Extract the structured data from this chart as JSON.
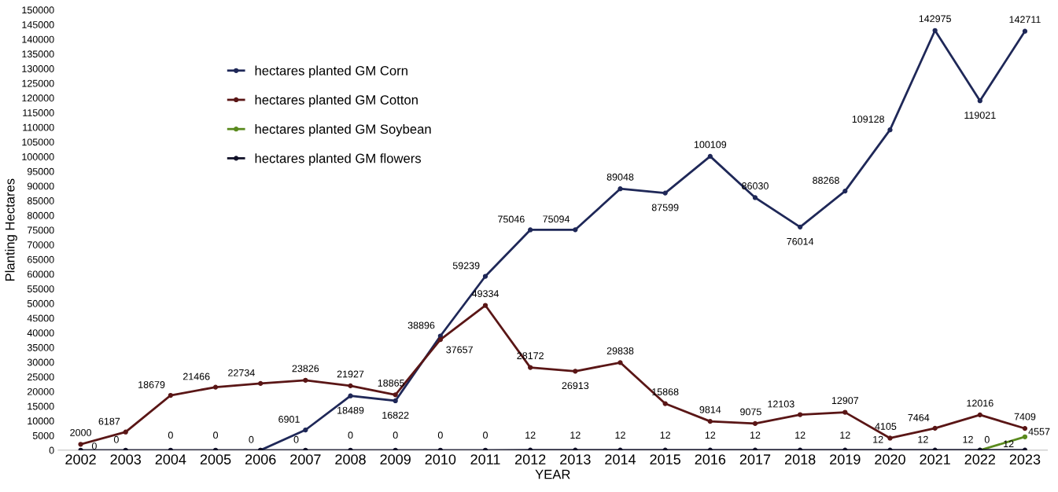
{
  "chart_data": {
    "type": "line",
    "xlabel": "YEAR",
    "ylabel": "Planting Hectares",
    "categories": [
      "2002",
      "2003",
      "2004",
      "2005",
      "2006",
      "2007",
      "2008",
      "2009",
      "2010",
      "2011",
      "2012",
      "2013",
      "2014",
      "2015",
      "2016",
      "2017",
      "2018",
      "2019",
      "2020",
      "2021",
      "2022",
      "2023"
    ],
    "series": [
      {
        "name": "hectares planted GM Corn",
        "color": "#1f2858",
        "values": [
          null,
          null,
          null,
          null,
          0,
          6901,
          18489,
          16822,
          38896,
          59239,
          75046,
          75094,
          89048,
          87599,
          100109,
          86030,
          76014,
          88268,
          109128,
          142975,
          119021,
          142711
        ],
        "value_labels": [
          null,
          null,
          null,
          null,
          null,
          "6901",
          "18489",
          "16822",
          "38896",
          "59239",
          "75046",
          "75094",
          "89048",
          "87599",
          "100109",
          "86030",
          "76014",
          "88268",
          "109128",
          "142975",
          "119021",
          "142711"
        ]
      },
      {
        "name": "hectares planted GM Cotton",
        "color": "#5a1616",
        "values": [
          2000,
          6187,
          18679,
          21466,
          22734,
          23826,
          21927,
          18865,
          37657,
          49334,
          28172,
          26913,
          29838,
          15868,
          9814,
          9075,
          12103,
          12907,
          4105,
          7464,
          12016,
          7409
        ],
        "value_labels": [
          "2000",
          "6187",
          "18679",
          "21466",
          "22734",
          "23826",
          "21927",
          "18865",
          "37657",
          "49334",
          "28172",
          "26913",
          "29838",
          "15868",
          "9814",
          "9075",
          "12103",
          "12907",
          "4105",
          "7464",
          "12016",
          "7409"
        ]
      },
      {
        "name": "hectares planted GM Soybean",
        "color": "#5a8a1e",
        "values": [
          null,
          null,
          null,
          null,
          null,
          null,
          null,
          null,
          null,
          null,
          null,
          null,
          null,
          null,
          null,
          null,
          null,
          null,
          null,
          null,
          0,
          4557
        ],
        "value_labels": [
          null,
          null,
          null,
          null,
          null,
          null,
          null,
          null,
          null,
          null,
          null,
          null,
          null,
          null,
          null,
          null,
          null,
          null,
          null,
          null,
          "0",
          "4557"
        ]
      },
      {
        "name": "hectares planted GM flowers",
        "color": "#111128",
        "values": [
          0,
          0,
          0,
          0,
          0,
          0,
          0,
          0,
          0,
          0,
          12,
          12,
          12,
          12,
          12,
          12,
          12,
          12,
          12,
          12,
          12,
          12
        ],
        "value_labels": [
          "0",
          "0",
          "0",
          "0",
          "0",
          "0",
          "0",
          "0",
          "0",
          "0",
          "12",
          "12",
          "12",
          "12",
          "12",
          "12",
          "12",
          "12",
          "12",
          "12",
          "12",
          "12"
        ]
      }
    ],
    "ylim": [
      0,
      150000
    ],
    "yticks": [
      0,
      5000,
      10000,
      15000,
      20000,
      25000,
      30000,
      35000,
      40000,
      45000,
      50000,
      55000,
      60000,
      65000,
      70000,
      75000,
      80000,
      85000,
      90000,
      95000,
      100000,
      105000,
      110000,
      115000,
      120000,
      125000,
      130000,
      135000,
      140000,
      145000,
      150000
    ],
    "legend": "top left",
    "marker": "circle",
    "line_style": "solid",
    "grid": false
  }
}
